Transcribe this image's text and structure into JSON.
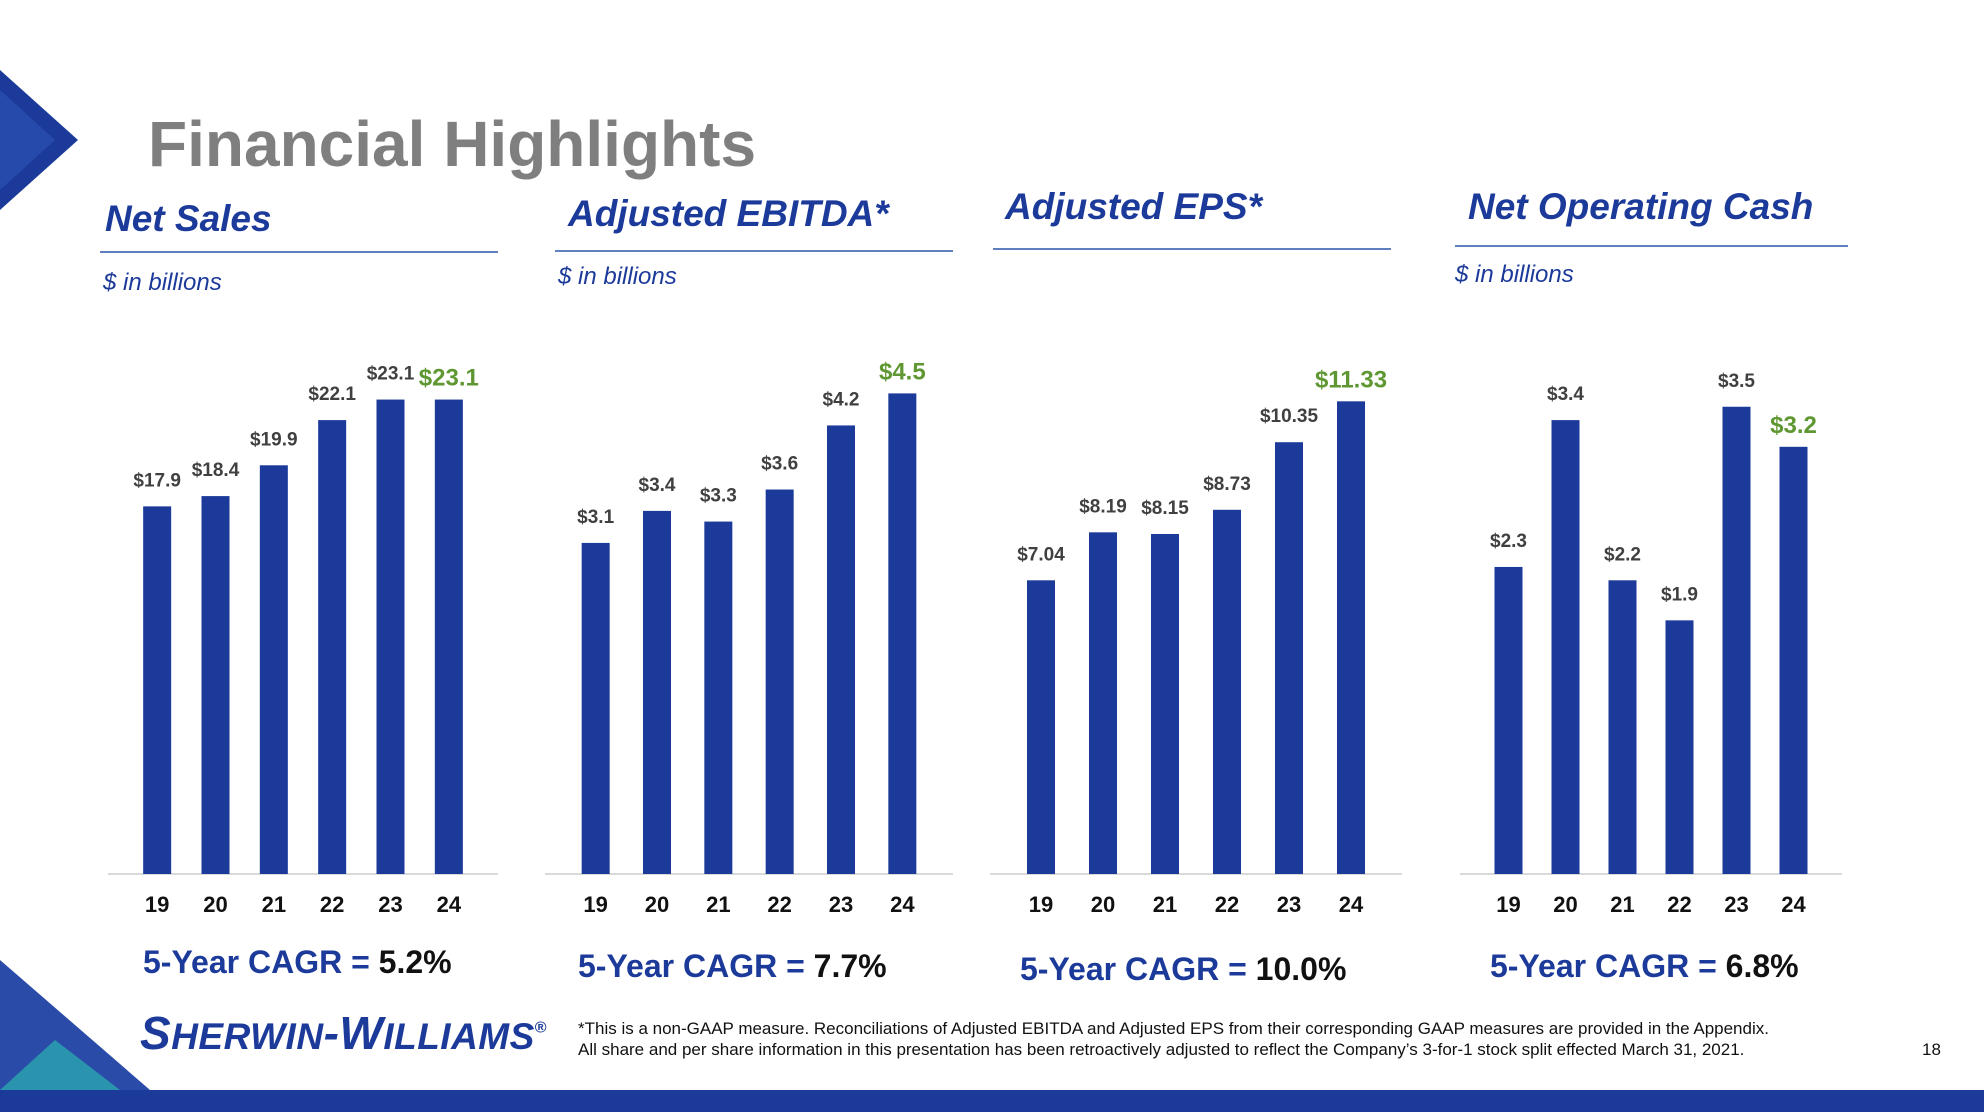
{
  "title": "Financial Highlights",
  "colors": {
    "bar": "#1b3a9a",
    "highlight": "#5f9732",
    "label": "#404040",
    "title": "#7f7f7f",
    "heading": "#1b3a9a"
  },
  "panels": [
    {
      "heading": "Net Sales",
      "units": "$ in billions",
      "cagr_label": "5-Year CAGR = ",
      "cagr_value": "5.2%"
    },
    {
      "heading": "Adjusted EBITDA*",
      "units": "$ in billions",
      "cagr_label": "5-Year CAGR = ",
      "cagr_value": "7.7%"
    },
    {
      "heading": "Adjusted EPS*",
      "units": "",
      "cagr_label": "5-Year CAGR = ",
      "cagr_value": "10.0%"
    },
    {
      "heading": "Net Operating Cash",
      "units": "$ in billions",
      "cagr_label": "5-Year CAGR = ",
      "cagr_value": "6.8%"
    }
  ],
  "chart_data": [
    {
      "type": "bar",
      "title": "Net Sales",
      "ylabel": "$ in billions",
      "categories": [
        "19",
        "20",
        "21",
        "22",
        "23",
        "24"
      ],
      "values": [
        17.9,
        18.4,
        19.9,
        22.1,
        23.1,
        23.1
      ],
      "labels": [
        "$17.9",
        "$18.4",
        "$19.9",
        "$22.1",
        "$23.1",
        "$23.1"
      ],
      "highlight_index": 5,
      "ylim": [
        0,
        26
      ]
    },
    {
      "type": "bar",
      "title": "Adjusted EBITDA*",
      "ylabel": "$ in billions",
      "categories": [
        "19",
        "20",
        "21",
        "22",
        "23",
        "24"
      ],
      "values": [
        3.1,
        3.4,
        3.3,
        3.6,
        4.2,
        4.5
      ],
      "labels": [
        "$3.1",
        "$3.4",
        "$3.3",
        "$3.6",
        "$4.2",
        "$4.5"
      ],
      "highlight_index": 5,
      "ylim": [
        0,
        5.0
      ]
    },
    {
      "type": "bar",
      "title": "Adjusted EPS*",
      "ylabel": "",
      "categories": [
        "19",
        "20",
        "21",
        "22",
        "23",
        "24"
      ],
      "values": [
        7.04,
        8.19,
        8.15,
        8.73,
        10.35,
        11.33
      ],
      "labels": [
        "$7.04",
        "$8.19",
        "$8.15",
        "$8.73",
        "$10.35",
        "$11.33"
      ],
      "highlight_index": 5,
      "ylim": [
        0,
        12.8
      ]
    },
    {
      "type": "bar",
      "title": "Net Operating Cash",
      "ylabel": "$ in billions",
      "categories": [
        "19",
        "20",
        "21",
        "22",
        "23",
        "24"
      ],
      "values": [
        2.3,
        3.4,
        2.2,
        1.9,
        3.5,
        3.2
      ],
      "labels": [
        "$2.3",
        "$3.4",
        "$2.2",
        "$1.9",
        "$3.5",
        "$3.2"
      ],
      "highlight_index": 5,
      "ylim": [
        0,
        4.0
      ]
    }
  ],
  "logo": {
    "text": "SHERWIN-WILLIAMS.",
    "big1": "S",
    "small1": "HERWIN",
    "dash": "-",
    "big2": "W",
    "small2": "ILLIAMS",
    "reg": "®"
  },
  "footnote": {
    "line1": "*This is a non-GAAP measure. Reconciliations of Adjusted EBITDA and Adjusted EPS from their corresponding GAAP measures are provided in the Appendix.",
    "line2": "All share and per share information in this presentation has been retroactively adjusted to reflect the Company’s 3-for-1 stock split effected March 31, 2021."
  },
  "page_number": "18"
}
